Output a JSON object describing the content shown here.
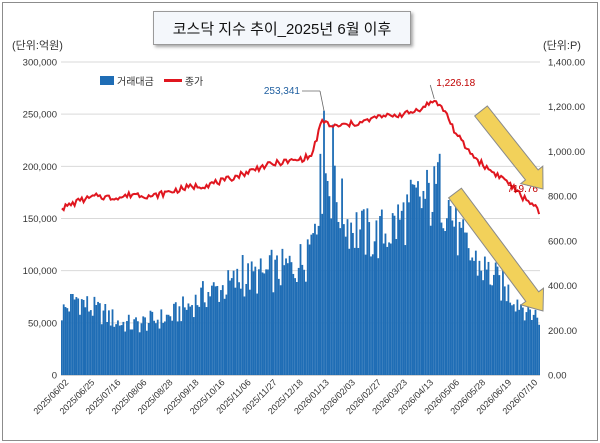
{
  "title": "코스닥 지수 추이_2025년 6월 이후",
  "unit_left": "(단위:억원)",
  "unit_right": "(단위:P)",
  "chart_data": {
    "type": "bar+line",
    "series": [
      {
        "name": "거래대금",
        "type": "bar",
        "axis": "left",
        "color": "#1f6db5"
      },
      {
        "name": "종가",
        "type": "line",
        "axis": "right",
        "color": "#e0161f"
      }
    ],
    "left_axis": {
      "min": 0,
      "max": 300000,
      "ticks": [
        "0",
        "50,000",
        "100,000",
        "150,000",
        "200,000",
        "250,000",
        "300,000"
      ]
    },
    "right_axis": {
      "min": 0,
      "max": 1400,
      "ticks": [
        "0.00",
        "200.00",
        "400.00",
        "600.00",
        "800.00",
        "1,000.00",
        "1,200.00",
        "1,400.00"
      ]
    },
    "x_ticks": [
      "2025/06/02",
      "2025/06/25",
      "2025/07/16",
      "2025/08/06",
      "2025/08/28",
      "2025/09/18",
      "2025/10/16",
      "2025/11/06",
      "2025/11/27",
      "2025/12/18",
      "2026/01/13",
      "2026/02/03",
      "2026/02/27",
      "2026/03/23",
      "2026/04/13",
      "2026/05/06",
      "2026/05/28",
      "2026/06/19",
      "2026/07/10"
    ],
    "trading_value_anchors": [
      [
        0,
        60000
      ],
      [
        8,
        74000
      ],
      [
        15,
        65000
      ],
      [
        24,
        58000
      ],
      [
        32,
        50000
      ],
      [
        40,
        48000
      ],
      [
        50,
        52000
      ],
      [
        60,
        56000
      ],
      [
        72,
        68000
      ],
      [
        80,
        78000
      ],
      [
        90,
        84000
      ],
      [
        100,
        92000
      ],
      [
        110,
        95000
      ],
      [
        118,
        98000
      ],
      [
        128,
        105000
      ],
      [
        136,
        112000
      ],
      [
        140,
        155000
      ],
      [
        145,
        195000
      ],
      [
        150,
        175000
      ],
      [
        158,
        148000
      ],
      [
        166,
        136000
      ],
      [
        174,
        132000
      ],
      [
        182,
        140000
      ],
      [
        188,
        150000
      ],
      [
        196,
        165000
      ],
      [
        204,
        170000
      ],
      [
        208,
        175000
      ],
      [
        214,
        165000
      ],
      [
        220,
        130000
      ],
      [
        228,
        110000
      ],
      [
        236,
        98000
      ],
      [
        244,
        84000
      ],
      [
        252,
        72000
      ],
      [
        258,
        62000
      ],
      [
        264,
        56000
      ]
    ],
    "trading_value_peaks": [
      [
        145,
        253341
      ],
      [
        150,
        240000
      ],
      [
        209,
        212000
      ],
      [
        136,
        130000
      ],
      [
        116,
        120000
      ],
      [
        100,
        115000
      ]
    ],
    "close_anchors": [
      [
        0,
        745
      ],
      [
        10,
        780
      ],
      [
        20,
        800
      ],
      [
        30,
        790
      ],
      [
        40,
        810
      ],
      [
        50,
        800
      ],
      [
        60,
        820
      ],
      [
        70,
        840
      ],
      [
        80,
        850
      ],
      [
        90,
        870
      ],
      [
        100,
        900
      ],
      [
        110,
        930
      ],
      [
        120,
        950
      ],
      [
        130,
        960
      ],
      [
        138,
        980
      ],
      [
        144,
        1140
      ],
      [
        150,
        1110
      ],
      [
        158,
        1120
      ],
      [
        166,
        1130
      ],
      [
        174,
        1150
      ],
      [
        182,
        1160
      ],
      [
        192,
        1170
      ],
      [
        200,
        1200
      ],
      [
        206,
        1226.18
      ],
      [
        212,
        1180
      ],
      [
        218,
        1080
      ],
      [
        226,
        990
      ],
      [
        236,
        920
      ],
      [
        246,
        870
      ],
      [
        254,
        800
      ],
      [
        262,
        760
      ],
      [
        264,
        719.76
      ]
    ],
    "trading_days": 265,
    "annotations": [
      {
        "text": "253,341",
        "series": "거래대금",
        "day": 145,
        "value": 253341,
        "color": "#1f5fa0"
      },
      {
        "text": "1,226.18",
        "series": "종가",
        "day": 206,
        "value": 1226.18,
        "color": "#c00000"
      },
      {
        "text": "719.76",
        "series": "종가",
        "day": 264,
        "value": 719.76,
        "color": "#c00000"
      }
    ],
    "arrows": 2
  }
}
